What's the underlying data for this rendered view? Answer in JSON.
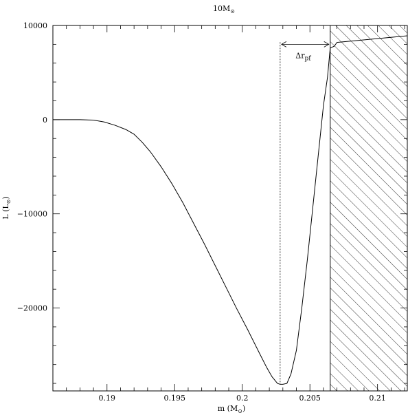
{
  "chart_data": {
    "type": "line",
    "title": "10M",
    "title_sub": "⊙",
    "xlabel_prefix": "m (M",
    "xlabel_sub": "⊙",
    "xlabel_suffix": ")",
    "ylabel_prefix": "L (L",
    "ylabel_sub": "⊙",
    "ylabel_suffix": ")",
    "xlim": [
      0.186,
      0.2122
    ],
    "ylim": [
      -28800,
      10000
    ],
    "xticks": [
      0.19,
      0.195,
      0.2,
      0.205,
      0.21
    ],
    "xtick_labels": [
      "0.19",
      "0.195",
      "0.2",
      "0.205",
      "0.21"
    ],
    "yticks": [
      -20000,
      -10000,
      0,
      10000
    ],
    "ytick_labels": [
      "−20000",
      "−10000",
      "0",
      "10000"
    ],
    "grid": false,
    "series": [
      {
        "x": [
          0.186,
          0.188,
          0.189,
          0.1898,
          0.1906,
          0.1914,
          0.192,
          0.1926,
          0.1932,
          0.194,
          0.1948,
          0.1956,
          0.1964,
          0.1972,
          0.198,
          0.1988,
          0.1996,
          0.2004,
          0.2012,
          0.2018,
          0.2022,
          0.2026,
          0.2028,
          0.203,
          0.2033,
          0.2036,
          0.204,
          0.2044,
          0.2048,
          0.2052,
          0.2056,
          0.206,
          0.2063,
          0.2065,
          0.2068,
          0.207,
          0.2122
        ],
        "y": [
          0,
          0,
          -50,
          -250,
          -600,
          -1050,
          -1550,
          -2400,
          -3400,
          -5000,
          -6800,
          -8800,
          -11000,
          -13200,
          -15500,
          -17800,
          -20100,
          -22300,
          -24600,
          -26300,
          -27300,
          -28000,
          -28100,
          -28100,
          -28000,
          -27000,
          -24500,
          -20000,
          -15000,
          -9500,
          -4000,
          1500,
          4500,
          7600,
          7800,
          8200,
          8900
        ]
      }
    ],
    "annotations": {
      "pf_marker_x": 0.2028,
      "boundary_x": 0.2065,
      "delta_label": "Δr",
      "delta_sub": "pf",
      "arrow_y": 8000
    }
  }
}
